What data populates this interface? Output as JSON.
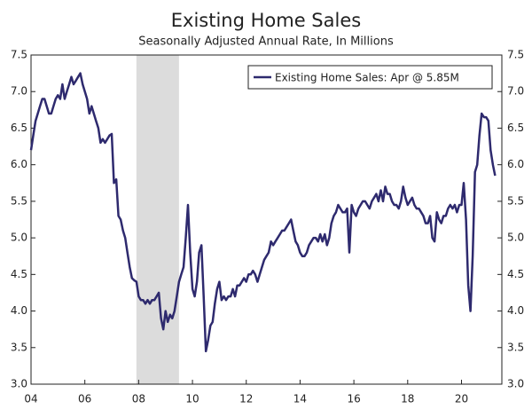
{
  "chart_data": {
    "type": "line",
    "title": "Existing Home Sales",
    "subtitle": "Seasonally Adjusted Annual Rate, In Millions",
    "recession": {
      "start": 2007.917,
      "end": 2009.5,
      "color": "#dcdcdc"
    },
    "legend": "top-right",
    "x": [
      2004.0,
      2004.083,
      2004.167,
      2004.25,
      2004.333,
      2004.417,
      2004.5,
      2004.583,
      2004.667,
      2004.75,
      2004.833,
      2004.917,
      2005.0,
      2005.083,
      2005.167,
      2005.25,
      2005.333,
      2005.417,
      2005.5,
      2005.583,
      2005.667,
      2005.75,
      2005.833,
      2005.917,
      2006.0,
      2006.083,
      2006.167,
      2006.25,
      2006.333,
      2006.417,
      2006.5,
      2006.583,
      2006.667,
      2006.75,
      2006.833,
      2006.917,
      2007.0,
      2007.083,
      2007.167,
      2007.25,
      2007.333,
      2007.417,
      2007.5,
      2007.583,
      2007.667,
      2007.75,
      2007.833,
      2007.917,
      2008.0,
      2008.083,
      2008.167,
      2008.25,
      2008.333,
      2008.417,
      2008.5,
      2008.583,
      2008.667,
      2008.75,
      2008.833,
      2008.917,
      2009.0,
      2009.083,
      2009.167,
      2009.25,
      2009.333,
      2009.417,
      2009.5,
      2009.583,
      2009.667,
      2009.75,
      2009.833,
      2009.917,
      2010.0,
      2010.083,
      2010.167,
      2010.25,
      2010.333,
      2010.417,
      2010.5,
      2010.583,
      2010.667,
      2010.75,
      2010.833,
      2010.917,
      2011.0,
      2011.083,
      2011.167,
      2011.25,
      2011.333,
      2011.417,
      2011.5,
      2011.583,
      2011.667,
      2011.75,
      2011.833,
      2011.917,
      2012.0,
      2012.083,
      2012.167,
      2012.25,
      2012.333,
      2012.417,
      2012.5,
      2012.583,
      2012.667,
      2012.75,
      2012.833,
      2012.917,
      2013.0,
      2013.083,
      2013.167,
      2013.25,
      2013.333,
      2013.417,
      2013.5,
      2013.583,
      2013.667,
      2013.75,
      2013.833,
      2013.917,
      2014.0,
      2014.083,
      2014.167,
      2014.25,
      2014.333,
      2014.417,
      2014.5,
      2014.583,
      2014.667,
      2014.75,
      2014.833,
      2014.917,
      2015.0,
      2015.083,
      2015.167,
      2015.25,
      2015.333,
      2015.417,
      2015.5,
      2015.583,
      2015.667,
      2015.75,
      2015.833,
      2015.917,
      2016.0,
      2016.083,
      2016.167,
      2016.25,
      2016.333,
      2016.417,
      2016.5,
      2016.583,
      2016.667,
      2016.75,
      2016.833,
      2016.917,
      2017.0,
      2017.083,
      2017.167,
      2017.25,
      2017.333,
      2017.417,
      2017.5,
      2017.583,
      2017.667,
      2017.75,
      2017.833,
      2017.917,
      2018.0,
      2018.083,
      2018.167,
      2018.25,
      2018.333,
      2018.417,
      2018.5,
      2018.583,
      2018.667,
      2018.75,
      2018.833,
      2018.917,
      2019.0,
      2019.083,
      2019.167,
      2019.25,
      2019.333,
      2019.417,
      2019.5,
      2019.583,
      2019.667,
      2019.75,
      2019.833,
      2019.917,
      2020.0,
      2020.083,
      2020.167,
      2020.25,
      2020.333,
      2020.417,
      2020.5,
      2020.583,
      2020.667,
      2020.75,
      2020.833,
      2020.917,
      2021.0,
      2021.083,
      2021.167,
      2021.25
    ],
    "series": [
      {
        "name": "Existing Home Sales: Apr @ 5.85M",
        "color": "#2e2a6e",
        "values": [
          6.2,
          6.4,
          6.6,
          6.7,
          6.8,
          6.9,
          6.9,
          6.8,
          6.7,
          6.7,
          6.8,
          6.9,
          6.95,
          6.9,
          7.1,
          6.9,
          7.0,
          7.1,
          7.2,
          7.1,
          7.15,
          7.2,
          7.25,
          7.1,
          7.0,
          6.9,
          6.7,
          6.8,
          6.7,
          6.6,
          6.5,
          6.3,
          6.35,
          6.3,
          6.35,
          6.4,
          6.42,
          5.75,
          5.8,
          5.3,
          5.25,
          5.1,
          5.0,
          4.8,
          4.6,
          4.45,
          4.42,
          4.4,
          4.2,
          4.15,
          4.15,
          4.1,
          4.15,
          4.1,
          4.15,
          4.15,
          4.2,
          4.25,
          3.9,
          3.75,
          4.0,
          3.85,
          3.95,
          3.9,
          4.0,
          4.2,
          4.4,
          4.5,
          4.6,
          5.0,
          5.45,
          4.8,
          4.3,
          4.2,
          4.4,
          4.8,
          4.9,
          4.2,
          3.45,
          3.6,
          3.8,
          3.85,
          4.1,
          4.3,
          4.4,
          4.15,
          4.2,
          4.15,
          4.2,
          4.2,
          4.3,
          4.2,
          4.35,
          4.35,
          4.4,
          4.45,
          4.4,
          4.5,
          4.5,
          4.55,
          4.5,
          4.4,
          4.5,
          4.6,
          4.7,
          4.75,
          4.8,
          4.95,
          4.9,
          4.95,
          5.0,
          5.05,
          5.1,
          5.1,
          5.15,
          5.2,
          5.25,
          5.1,
          4.95,
          4.9,
          4.8,
          4.75,
          4.75,
          4.8,
          4.9,
          4.95,
          5.0,
          5.0,
          4.95,
          5.05,
          4.95,
          5.05,
          4.9,
          5.0,
          5.2,
          5.3,
          5.35,
          5.45,
          5.4,
          5.35,
          5.35,
          5.4,
          4.8,
          5.45,
          5.35,
          5.3,
          5.4,
          5.45,
          5.5,
          5.5,
          5.45,
          5.4,
          5.5,
          5.55,
          5.6,
          5.5,
          5.65,
          5.5,
          5.7,
          5.6,
          5.6,
          5.5,
          5.45,
          5.45,
          5.4,
          5.5,
          5.7,
          5.55,
          5.45,
          5.5,
          5.55,
          5.45,
          5.4,
          5.4,
          5.35,
          5.3,
          5.2,
          5.2,
          5.3,
          5.0,
          4.95,
          5.35,
          5.25,
          5.2,
          5.3,
          5.3,
          5.4,
          5.45,
          5.4,
          5.45,
          5.35,
          5.45,
          5.45,
          5.75,
          5.25,
          4.35,
          4.0,
          4.75,
          5.9,
          6.0,
          6.4,
          6.7,
          6.65,
          6.65,
          6.6,
          6.2,
          6.0,
          5.85
        ]
      }
    ],
    "xlim": [
      2004,
      2021.5
    ],
    "xticks": [
      {
        "value": 2004,
        "label": "04"
      },
      {
        "value": 2006,
        "label": "06"
      },
      {
        "value": 2008,
        "label": "08"
      },
      {
        "value": 2010,
        "label": "10"
      },
      {
        "value": 2012,
        "label": "12"
      },
      {
        "value": 2014,
        "label": "14"
      },
      {
        "value": 2016,
        "label": "16"
      },
      {
        "value": 2018,
        "label": "18"
      },
      {
        "value": 2020,
        "label": "20"
      }
    ],
    "ylim": [
      3.0,
      7.5
    ],
    "yticks": [
      {
        "value": 3,
        "label": "3.0"
      },
      3.5,
      {
        "value": 4,
        "label": "4.0"
      },
      4.5,
      {
        "value": 5,
        "label": "5.0"
      },
      5.5,
      {
        "value": 6,
        "label": "6.0"
      },
      6.5,
      {
        "value": 7,
        "label": "7.0"
      },
      7.5
    ],
    "y2lim": [
      3.0,
      7.5
    ],
    "y2ticks": [
      {
        "value": 3,
        "label": "3.0"
      },
      3.5,
      {
        "value": 4,
        "label": "4.0"
      },
      4.5,
      {
        "value": 5,
        "label": "5.0"
      },
      5.5,
      {
        "value": 6,
        "label": "6.0"
      },
      6.5,
      {
        "value": 7,
        "label": "7.0"
      },
      7.5
    ]
  }
}
